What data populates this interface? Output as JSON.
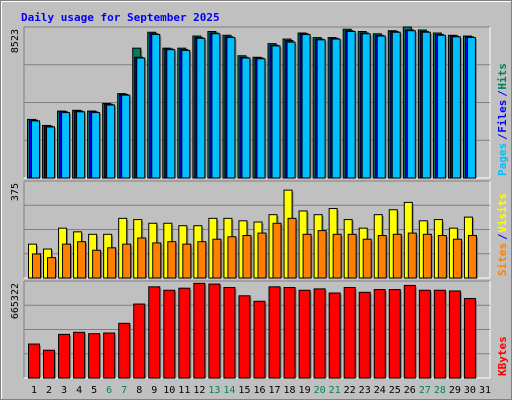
{
  "chart_data": [
    {
      "type": "bar",
      "title": "Daily usage for September 2025",
      "panel": "hits_files_pages",
      "ytick_label": "8523",
      "ylim": [
        0,
        9700
      ],
      "legend": [
        {
          "name": "Pages",
          "color": "#00c0ff"
        },
        {
          "name": "/",
          "color": "#0000ff"
        },
        {
          "name": "Files",
          "color": "#0000ff"
        },
        {
          "name": "/",
          "color": "#0000ff"
        },
        {
          "name": "Hits",
          "color": "#00805c"
        }
      ],
      "categories": [
        "1",
        "2",
        "3",
        "4",
        "5",
        "6",
        "7",
        "8",
        "9",
        "10",
        "11",
        "12",
        "13",
        "14",
        "15",
        "16",
        "17",
        "18",
        "19",
        "20",
        "21",
        "22",
        "23",
        "24",
        "25",
        "26",
        "27",
        "28",
        "29",
        "30"
      ],
      "series": [
        {
          "name": "Hits",
          "color": "#00805c",
          "values": [
            3900,
            3500,
            4450,
            4500,
            4450,
            4950,
            5600,
            8600,
            9650,
            8600,
            8600,
            9400,
            9700,
            9450,
            8100,
            8000,
            8900,
            9200,
            9600,
            9300,
            9300,
            9850,
            9700,
            9550,
            9750,
            10000,
            9800,
            9600,
            9450,
            9400
          ]
        },
        {
          "name": "Files",
          "color": "#0000ff",
          "values": [
            3850,
            3450,
            4400,
            4450,
            4400,
            4900,
            5550,
            8000,
            9550,
            8550,
            8500,
            9300,
            9600,
            9350,
            8000,
            7950,
            8800,
            9100,
            9550,
            9200,
            9250,
            9750,
            9600,
            9450,
            9700,
            9800,
            9700,
            9500,
            9400,
            9350
          ]
        },
        {
          "name": "Pages",
          "color": "#00c0ff",
          "values": [
            3800,
            3400,
            4350,
            4400,
            4350,
            4850,
            5500,
            7950,
            9500,
            8500,
            8450,
            9250,
            9550,
            9300,
            7950,
            7900,
            8750,
            9000,
            9500,
            9150,
            9200,
            9700,
            9550,
            9400,
            9650,
            9750,
            9650,
            9450,
            9350,
            9300
          ]
        }
      ]
    },
    {
      "type": "bar",
      "panel": "visits_sites",
      "ytick_label": "375",
      "ylim": [
        0,
        387
      ],
      "legend": [
        {
          "name": "Sites",
          "color": "#ff8000"
        },
        {
          "name": "/",
          "color": "#0000ff"
        },
        {
          "name": "Visits",
          "color": "#ffff00"
        }
      ],
      "categories": [
        "1",
        "2",
        "3",
        "4",
        "5",
        "6",
        "7",
        "8",
        "9",
        "10",
        "11",
        "12",
        "13",
        "14",
        "15",
        "16",
        "17",
        "18",
        "19",
        "20",
        "21",
        "22",
        "23",
        "24",
        "25",
        "26",
        "27",
        "28",
        "29",
        "30"
      ],
      "series": [
        {
          "name": "Visits",
          "color": "#ffff00",
          "values": [
            140,
            120,
            205,
            190,
            180,
            180,
            245,
            240,
            225,
            225,
            215,
            215,
            245,
            245,
            235,
            230,
            260,
            360,
            275,
            260,
            285,
            240,
            205,
            260,
            280,
            310,
            235,
            240,
            205,
            250
          ]
        },
        {
          "name": "Sites",
          "color": "#ff8000",
          "values": [
            100,
            85,
            140,
            150,
            115,
            125,
            140,
            165,
            145,
            150,
            140,
            150,
            160,
            170,
            175,
            185,
            225,
            245,
            180,
            195,
            180,
            180,
            160,
            175,
            180,
            185,
            180,
            175,
            160,
            175
          ]
        }
      ]
    },
    {
      "type": "bar",
      "panel": "kbytes",
      "ytick_label": "665322",
      "ylim": [
        0,
        689000
      ],
      "legend": [
        {
          "name": "KBytes",
          "color": "#ff0000"
        }
      ],
      "categories": [
        "1",
        "2",
        "3",
        "4",
        "5",
        "6",
        "7",
        "8",
        "9",
        "10",
        "11",
        "12",
        "13",
        "14",
        "15",
        "16",
        "17",
        "18",
        "19",
        "20",
        "21",
        "22",
        "23",
        "24",
        "25",
        "26",
        "27",
        "28",
        "29",
        "30"
      ],
      "series": [
        {
          "name": "KBytes",
          "color": "#ff0000",
          "values": [
            250000,
            205000,
            320000,
            335000,
            325000,
            330000,
            400000,
            540000,
            665000,
            640000,
            655000,
            690000,
            685000,
            660000,
            600000,
            560000,
            665000,
            660000,
            640000,
            650000,
            620000,
            660000,
            625000,
            645000,
            645000,
            675000,
            640000,
            640000,
            635000,
            580000
          ]
        }
      ]
    }
  ],
  "x_axis_labels": [
    {
      "label": "1",
      "color": "#000000"
    },
    {
      "label": "2",
      "color": "#000000"
    },
    {
      "label": "3",
      "color": "#000000"
    },
    {
      "label": "4",
      "color": "#000000"
    },
    {
      "label": "5",
      "color": "#000000"
    },
    {
      "label": "6",
      "color": "#00805c"
    },
    {
      "label": "7",
      "color": "#00805c"
    },
    {
      "label": "8",
      "color": "#000000"
    },
    {
      "label": "9",
      "color": "#000000"
    },
    {
      "label": "10",
      "color": "#000000"
    },
    {
      "label": "11",
      "color": "#000000"
    },
    {
      "label": "12",
      "color": "#000000"
    },
    {
      "label": "13",
      "color": "#00805c"
    },
    {
      "label": "14",
      "color": "#00805c"
    },
    {
      "label": "15",
      "color": "#000000"
    },
    {
      "label": "16",
      "color": "#000000"
    },
    {
      "label": "17",
      "color": "#000000"
    },
    {
      "label": "18",
      "color": "#000000"
    },
    {
      "label": "19",
      "color": "#000000"
    },
    {
      "label": "20",
      "color": "#00805c"
    },
    {
      "label": "21",
      "color": "#00805c"
    },
    {
      "label": "22",
      "color": "#000000"
    },
    {
      "label": "23",
      "color": "#000000"
    },
    {
      "label": "24",
      "color": "#000000"
    },
    {
      "label": "25",
      "color": "#000000"
    },
    {
      "label": "26",
      "color": "#000000"
    },
    {
      "label": "27",
      "color": "#00805c"
    },
    {
      "label": "28",
      "color": "#00805c"
    },
    {
      "label": "29",
      "color": "#000000"
    },
    {
      "label": "30",
      "color": "#000000"
    },
    {
      "label": "31",
      "color": "#000000"
    }
  ],
  "colors": {
    "background": "#c0c0c0",
    "plot_background": "#c0c0c0",
    "gridline": "#808080",
    "title": "#0000ff",
    "bar_outline": "#000000"
  }
}
